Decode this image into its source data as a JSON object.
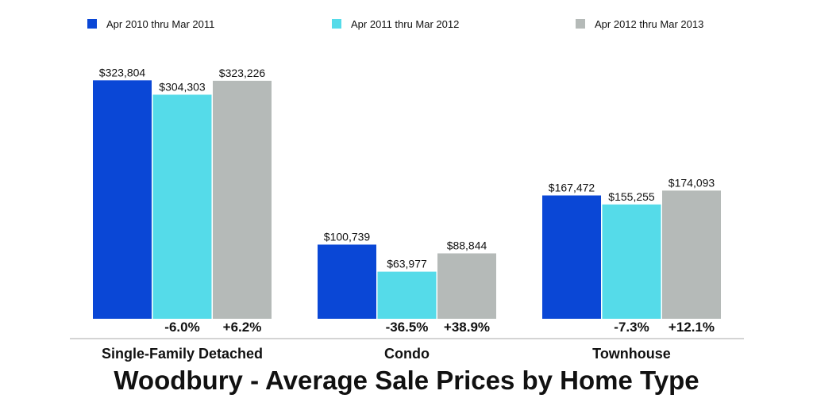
{
  "chart_data": {
    "type": "bar",
    "title": "Woodbury - Average Sale Prices by Home Type",
    "categories": [
      "Single-Family Detached",
      "Condo",
      "Townhouse"
    ],
    "series": [
      {
        "name": "Apr 2010 thru Mar 2011",
        "color": "#0a47d6",
        "values": [
          323804,
          100739,
          167472
        ],
        "labels": [
          "$323,804",
          "$100,739",
          "$167,472"
        ]
      },
      {
        "name": "Apr 2011 thru Mar 2012",
        "color": "#55dbe9",
        "values": [
          304303,
          63977,
          155255
        ],
        "labels": [
          "$304,303",
          "$63,977",
          "$155,255"
        ]
      },
      {
        "name": "Apr 2012 thru Mar 2013",
        "color": "#b5bab8",
        "values": [
          323226,
          88844,
          174093
        ],
        "labels": [
          "$323,226",
          "$88,844",
          "$174,093"
        ]
      }
    ],
    "percent_changes": [
      [
        "-6.0%",
        "+6.2%"
      ],
      [
        "-36.5%",
        "+38.9%"
      ],
      [
        "-7.3%",
        "+12.1%"
      ]
    ],
    "ylim": [
      0,
      350000
    ],
    "legend": "top",
    "grid": false
  }
}
